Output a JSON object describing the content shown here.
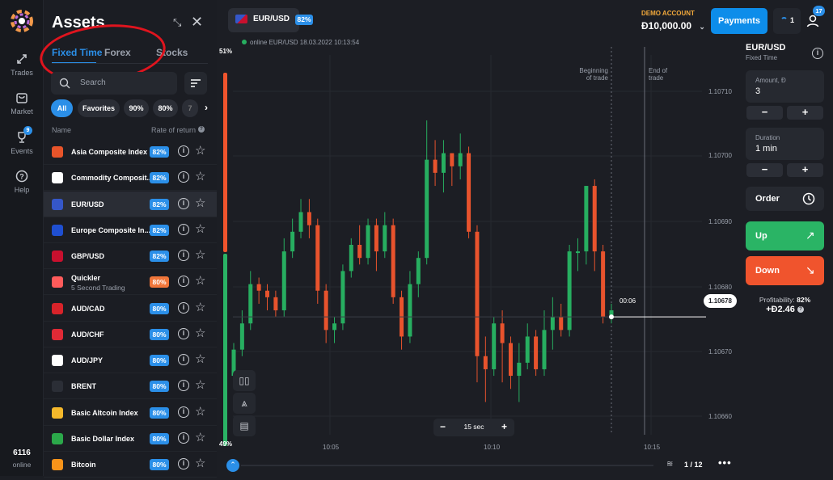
{
  "rail": {
    "items": [
      {
        "label": "Trades",
        "icon": "arrows-icon"
      },
      {
        "label": "Market",
        "icon": "bag-icon"
      },
      {
        "label": "Events",
        "icon": "trophy-icon",
        "badge": "9"
      },
      {
        "label": "Help",
        "icon": "question-icon"
      }
    ],
    "online_count": "6116",
    "online_label": "online"
  },
  "assets": {
    "title": "Assets",
    "tabs": [
      "Fixed Time",
      "Forex",
      "Stocks"
    ],
    "search_placeholder": "Search",
    "filters": [
      "All",
      "Favorites",
      "90%",
      "80%",
      "7"
    ],
    "col_name": "Name",
    "col_rate": "Rate of return",
    "rows": [
      {
        "name": "Asia Composite Index",
        "pct": "82%",
        "color": "#e8542a"
      },
      {
        "name": "Commodity Composit...",
        "pct": "82%",
        "color": "#ffffff"
      },
      {
        "name": "EUR/USD",
        "pct": "82%",
        "color": "#3557c9"
      },
      {
        "name": "Europe Composite In...",
        "pct": "82%",
        "color": "#1f4fd1"
      },
      {
        "name": "GBP/USD",
        "pct": "82%",
        "color": "#c8102e"
      },
      {
        "name": "Quickler",
        "sub": "5 Second Trading",
        "pct": "80%",
        "color": "#ff5b5b",
        "pct_color": "#f0763a"
      },
      {
        "name": "AUD/CAD",
        "pct": "80%",
        "color": "#d8232a"
      },
      {
        "name": "AUD/CHF",
        "pct": "80%",
        "color": "#e02a36"
      },
      {
        "name": "AUD/JPY",
        "pct": "80%",
        "color": "#ffffff"
      },
      {
        "name": "BRENT",
        "pct": "80%",
        "color": "#2b2e36"
      },
      {
        "name": "Basic Altcoin Index",
        "pct": "80%",
        "color": "#f5b82b"
      },
      {
        "name": "Basic Dollar Index",
        "pct": "80%",
        "color": "#2ba84a"
      },
      {
        "name": "Bitcoin",
        "pct": "80%",
        "color": "#f7931a"
      }
    ]
  },
  "header": {
    "pair": "EUR/USD",
    "pair_pct": "82%",
    "online_status": "online EUR/USD  18.03.2022 10:13:54",
    "account_type": "DEMO ACCOUNT",
    "balance": "Đ10,000.00",
    "payments": "Payments",
    "trades_count": "1",
    "notif_count": "17"
  },
  "chart": {
    "pct_top": "51%",
    "pct_bottom": "49%",
    "beginning_label": "Beginning\nof trade",
    "end_label": "End of\ntrade",
    "price_ticks": [
      "1.10710",
      "1.10700",
      "1.10690",
      "1.10680",
      "1.10670",
      "1.10660"
    ],
    "time_ticks": [
      "10:05",
      "10:10",
      "10:15"
    ],
    "current_price": "1.10678",
    "timer": "00:06",
    "interval": "15 sec",
    "page": "1 / 12",
    "up_color": "#27ae60",
    "down_color": "#e8532d"
  },
  "chart_data": {
    "type": "candlestick",
    "y_range": [
      1.1066,
      1.10718
    ],
    "candles": [
      [
        1.10669,
        1.10673,
        1.10667,
        1.10674
      ],
      [
        1.10673,
        1.10677,
        1.10672,
        1.10679
      ],
      [
        1.10677,
        1.10683,
        1.10676,
        1.10685
      ],
      [
        1.10683,
        1.10682,
        1.1068,
        1.10684
      ],
      [
        1.10682,
        1.10681,
        1.10679,
        1.10683
      ],
      [
        1.10681,
        1.10679,
        1.10678,
        1.10682
      ],
      [
        1.10679,
        1.10688,
        1.10678,
        1.1069
      ],
      [
        1.10688,
        1.10691,
        1.10687,
        1.10693
      ],
      [
        1.10691,
        1.10694,
        1.1069,
        1.10696
      ],
      [
        1.10694,
        1.10692,
        1.1069,
        1.10696
      ],
      [
        1.10692,
        1.10682,
        1.1068,
        1.10693
      ],
      [
        1.10682,
        1.10676,
        1.10674,
        1.10683
      ],
      [
        1.10676,
        1.10677,
        1.10674,
        1.10678
      ],
      [
        1.10677,
        1.10685,
        1.10676,
        1.10686
      ],
      [
        1.10685,
        1.10689,
        1.10684,
        1.1069
      ],
      [
        1.10689,
        1.10687,
        1.10686,
        1.10692
      ],
      [
        1.10687,
        1.10692,
        1.10686,
        1.10693
      ],
      [
        1.10692,
        1.10688,
        1.10685,
        1.10693
      ],
      [
        1.10688,
        1.10692,
        1.10687,
        1.10694
      ],
      [
        1.10692,
        1.10681,
        1.1068,
        1.10693
      ],
      [
        1.10681,
        1.10675,
        1.10673,
        1.10682
      ],
      [
        1.10675,
        1.10683,
        1.10674,
        1.10685
      ],
      [
        1.10683,
        1.10687,
        1.10681,
        1.10688
      ],
      [
        1.10687,
        1.10702,
        1.10686,
        1.10708
      ],
      [
        1.10702,
        1.107,
        1.10698,
        1.10705
      ],
      [
        1.107,
        1.10703,
        1.10697,
        1.10705
      ],
      [
        1.10703,
        1.10701,
        1.10698,
        1.10703
      ],
      [
        1.10701,
        1.10703,
        1.10699,
        1.10706
      ],
      [
        1.10703,
        1.10691,
        1.1069,
        1.10704
      ],
      [
        1.10691,
        1.10672,
        1.10668,
        1.10692
      ],
      [
        1.10672,
        1.1067,
        1.10665,
        1.10675
      ],
      [
        1.1067,
        1.10677,
        1.10669,
        1.10678
      ],
      [
        1.10677,
        1.10674,
        1.10668,
        1.10679
      ],
      [
        1.10674,
        1.10669,
        1.10667,
        1.10675
      ],
      [
        1.10669,
        1.10671,
        1.10665,
        1.10674
      ],
      [
        1.10671,
        1.10675,
        1.1067,
        1.10677
      ],
      [
        1.10675,
        1.1067,
        1.10669,
        1.10676
      ],
      [
        1.1067,
        1.10676,
        1.10669,
        1.10679
      ],
      [
        1.10676,
        1.10678,
        1.10673,
        1.10681
      ],
      [
        1.10678,
        1.10676,
        1.10675,
        1.1068
      ],
      [
        1.10676,
        1.10688,
        1.10675,
        1.10689
      ],
      [
        1.10688,
        1.10688,
        1.10685,
        1.1069
      ],
      [
        1.10688,
        1.10698,
        1.10686,
        1.10698
      ],
      [
        1.10698,
        1.10688,
        1.10685,
        1.10699
      ],
      [
        1.10688,
        1.10678,
        1.10677,
        1.10689
      ],
      [
        1.10678,
        1.10679,
        1.10677,
        1.1068
      ]
    ]
  },
  "trade": {
    "pair": "EUR/USD",
    "mode": "Fixed Time",
    "amount_label": "Amount, Đ",
    "amount": "3",
    "duration_label": "Duration",
    "duration": "1 min",
    "order": "Order",
    "up": "Up",
    "down": "Down",
    "profitability_label": "Profitability:",
    "profitability": "82%",
    "profit": "+Đ2.46"
  }
}
